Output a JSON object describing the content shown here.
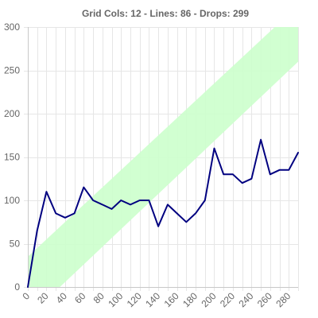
{
  "chart": {
    "title": "Grid Cols: 12 - Lines: 86 - Drops: 299"
  },
  "colors": {
    "line": "#000080",
    "band": "#ccffcc",
    "grid": "#e6e6e6",
    "text": "#666666"
  },
  "chart_data": {
    "type": "line",
    "title": "Grid Cols: 12 - Lines: 86 - Drops: 299",
    "xlabel": "",
    "ylabel": "",
    "xlim": [
      0,
      290
    ],
    "ylim": [
      0,
      300
    ],
    "x_ticks": [
      0,
      20,
      40,
      60,
      80,
      100,
      120,
      140,
      160,
      180,
      200,
      220,
      240,
      260,
      280
    ],
    "y_ticks": [
      0,
      50,
      100,
      150,
      200,
      250,
      300
    ],
    "grid": true,
    "legend": "none",
    "series": [
      {
        "x": [
          0,
          10,
          20,
          30,
          40,
          50,
          60,
          70,
          80,
          90,
          100,
          110,
          120,
          130,
          140,
          150,
          160,
          170,
          180,
          190,
          200,
          210,
          220,
          230,
          240,
          250,
          260,
          270,
          280,
          290
        ],
        "values": [
          0,
          65,
          110,
          85,
          80,
          85,
          115,
          100,
          95,
          90,
          100,
          95,
          100,
          100,
          70,
          95,
          85,
          75,
          85,
          100,
          160,
          130,
          130,
          120,
          125,
          170,
          130,
          135,
          135,
          155
        ]
      }
    ],
    "band": {
      "x": [
        0,
        290
      ],
      "lower": [
        -35,
        260
      ],
      "upper": [
        35,
        325
      ]
    }
  }
}
